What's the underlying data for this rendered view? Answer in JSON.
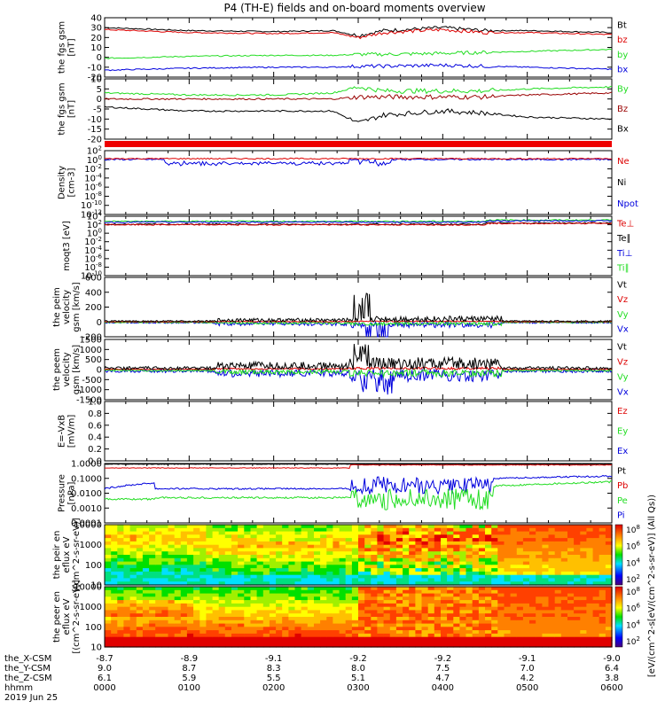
{
  "title": "P4 (TH-E) fields and on-board moments overview",
  "footer": {
    "row_labels": [
      "the_X-CSM",
      "the_Y-CSM",
      "the_Z-CSM",
      "hhmm",
      "2019 Jun 25"
    ],
    "x_csm": [
      "-8.7",
      "-8.9",
      "-9.1",
      "-9.2",
      "-9.2",
      "-9.1",
      "-9.0"
    ],
    "y_csm": [
      "9.0",
      "8.7",
      "8.3",
      "8.0",
      "7.5",
      "7.0",
      "6.4"
    ],
    "z_csm": [
      "6.1",
      "5.9",
      "5.5",
      "5.1",
      "4.7",
      "4.2",
      "3.8"
    ],
    "hhmm": [
      "0000",
      "0100",
      "0200",
      "0300",
      "0400",
      "0500",
      "0600"
    ]
  },
  "colorbar": {
    "label": "[eV/(cm^2-s[eV/(cm^2-s-sr-eV)] (All Qs))",
    "upper_ticks": [
      "10^8",
      "10^6",
      "10^4",
      "10^2"
    ],
    "lower_ticks": [
      "10^8",
      "10^6",
      "10^4",
      "10^2"
    ]
  },
  "colors": {
    "black": "#000000",
    "red": "#dd0000",
    "green": "#22dd22",
    "blue": "#0000dd",
    "dark_red": "#990000",
    "bar_red": "#ee0000"
  },
  "chart_data": [
    {
      "type": "line",
      "ylabel": "the fgs gsm [nT]",
      "ylim": [
        -20,
        40
      ],
      "yticks": [
        "40",
        "30",
        "20",
        "10",
        "0",
        "-10",
        "-20"
      ],
      "legend": [
        {
          "name": "Bt",
          "color": "#000000"
        },
        {
          "name": "bz",
          "color": "#dd0000"
        },
        {
          "name": "by",
          "color": "#22dd22"
        },
        {
          "name": "bx",
          "color": "#0000dd"
        }
      ],
      "x": [
        0,
        1,
        2,
        2.7,
        3.0,
        3.3,
        4.0,
        4.5,
        5.0,
        6.0
      ],
      "series": [
        {
          "name": "Bt",
          "values": [
            30,
            27,
            26,
            27,
            22,
            27,
            30,
            27,
            27,
            25
          ]
        },
        {
          "name": "bz",
          "values": [
            28,
            25,
            24,
            25,
            20,
            25,
            28,
            25,
            25,
            23
          ]
        },
        {
          "name": "by",
          "values": [
            -1,
            1,
            2,
            2,
            3,
            3,
            4,
            5,
            6,
            8
          ]
        },
        {
          "name": "bx",
          "values": [
            -13,
            -11,
            -10,
            -10,
            -9,
            -9,
            -8,
            -9,
            -10,
            -12
          ]
        }
      ]
    },
    {
      "type": "line",
      "ylabel": "the fgs gsm [nT]",
      "ylim": [
        -20,
        10
      ],
      "yticks": [
        "10",
        "5",
        "0",
        "-5",
        "-10",
        "-15",
        "-20"
      ],
      "legend": [
        {
          "name": "By",
          "color": "#22dd22"
        },
        {
          "name": "Bz",
          "color": "#990000"
        },
        {
          "name": "Bx",
          "color": "#000000"
        }
      ],
      "x": [
        0,
        1,
        2,
        2.7,
        3.0,
        3.3,
        4.0,
        4.5,
        5.0,
        6.0
      ],
      "series": [
        {
          "name": "By",
          "values": [
            3,
            2,
            2,
            3,
            6,
            4,
            4,
            4,
            5,
            6
          ]
        },
        {
          "name": "Bz",
          "values": [
            0,
            0,
            0,
            0,
            1,
            1,
            1,
            1,
            2,
            3
          ]
        },
        {
          "name": "Bx",
          "values": [
            -4,
            -6,
            -6,
            -6,
            -12,
            -8,
            -6,
            -7,
            -9,
            -10
          ]
        }
      ]
    },
    {
      "type": "line",
      "ylabel": "Density [cm-3]",
      "ylim": [
        -14,
        2
      ],
      "log": true,
      "yticks": [
        "10^2",
        "10^0",
        "10^-2",
        "10^-4",
        "10^-6",
        "10^-8",
        "10^-10",
        "10^-12"
      ],
      "legend": [
        {
          "name": "Ne",
          "color": "#dd0000"
        },
        {
          "name": "Ni",
          "color": "#000000"
        },
        {
          "name": "Npot",
          "color": "#0000dd"
        }
      ]
    },
    {
      "type": "line",
      "ylabel": "moqt3 [eV]",
      "ylim": [
        -10,
        4
      ],
      "log": true,
      "yticks": [
        "10^4",
        "10^2",
        "10^0",
        "10^-2",
        "10^-4",
        "10^-6",
        "10^-8",
        "10^-10"
      ],
      "legend": [
        {
          "name": "Te⊥",
          "color": "#dd0000"
        },
        {
          "name": "Te∥",
          "color": "#000000"
        },
        {
          "name": "Ti⊥",
          "color": "#0000dd"
        },
        {
          "name": "Ti∥",
          "color": "#22dd22"
        }
      ]
    },
    {
      "type": "line",
      "ylabel": "the peim velocity gsm [km/s]",
      "ylim": [
        -200,
        600
      ],
      "yticks": [
        "600",
        "400",
        "200",
        "0",
        "-200"
      ],
      "legend": [
        {
          "name": "Vt",
          "color": "#000000"
        },
        {
          "name": "Vz",
          "color": "#dd0000"
        },
        {
          "name": "Vy",
          "color": "#22dd22"
        },
        {
          "name": "Vx",
          "color": "#0000dd"
        }
      ]
    },
    {
      "type": "line",
      "ylabel": "the peem velocity gsm [km/s]",
      "ylim": [
        -1500,
        1500
      ],
      "yticks": [
        "1500",
        "1000",
        "500",
        "0",
        "-500",
        "-1000",
        "-1500"
      ],
      "legend": [
        {
          "name": "Vt",
          "color": "#000000"
        },
        {
          "name": "Vz",
          "color": "#dd0000"
        },
        {
          "name": "Vy",
          "color": "#22dd22"
        },
        {
          "name": "Vx",
          "color": "#0000dd"
        }
      ]
    },
    {
      "type": "line",
      "ylabel": "E=-VxB [mV/m]",
      "ylim": [
        0,
        1.0
      ],
      "yticks": [
        "1.0",
        "0.8",
        "0.6",
        "0.4",
        "0.2",
        "0.0"
      ],
      "legend": [
        {
          "name": "Ez",
          "color": "#dd0000"
        },
        {
          "name": "Ey",
          "color": "#22dd22"
        },
        {
          "name": "Ex",
          "color": "#0000dd"
        }
      ]
    },
    {
      "type": "line",
      "ylabel": "Pressure [nPa]",
      "ylim": [
        -4,
        0
      ],
      "log": true,
      "yticks": [
        "1.0000",
        "0.1000",
        "0.0100",
        "0.0010",
        "0.0001"
      ],
      "legend": [
        {
          "name": "Pt",
          "color": "#000000"
        },
        {
          "name": "Pb",
          "color": "#dd0000"
        },
        {
          "name": "Pe",
          "color": "#22dd22"
        },
        {
          "name": "Pi",
          "color": "#0000dd"
        }
      ]
    },
    {
      "type": "heatmap",
      "ylabel": "the peir en eflux eV [(cm^2-s-sr-eV)]",
      "ylim": [
        10,
        10000
      ],
      "log": true,
      "yticks": [
        "10000",
        "1000",
        "100",
        "10"
      ]
    },
    {
      "type": "heatmap",
      "ylabel": "the peer en eflux eV [(cm^2-s-sr-eV)]",
      "ylim": [
        10,
        10000
      ],
      "log": true,
      "yticks": [
        "10000",
        "1000",
        "100",
        "10"
      ]
    }
  ]
}
